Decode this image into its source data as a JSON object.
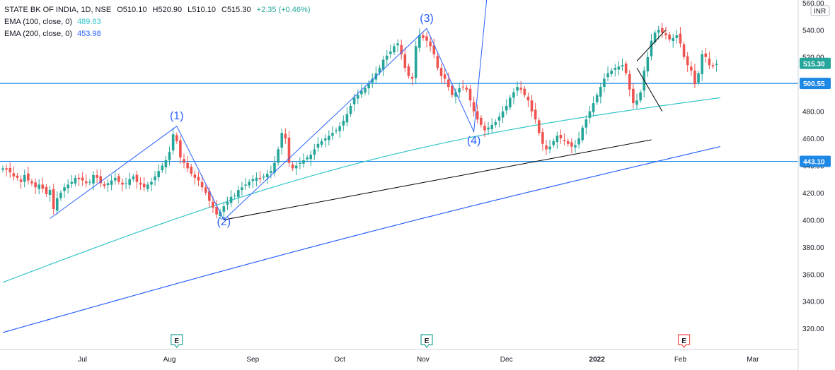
{
  "legend": {
    "symbol": "STATE BK OF INDIA, 1D, NSE",
    "open": "O510.10",
    "high": "H520.90",
    "low": "L510.10",
    "close": "C515.30",
    "change": "+2.35 (+0.46%)",
    "ema100_label": "EMA (100, close, 0)",
    "ema100_value": "489.83",
    "ema200_label": "EMA (200, close, 0)",
    "ema200_value": "453.98"
  },
  "currency": "INR",
  "colors": {
    "up": "#26a69a",
    "down": "#ef5350",
    "ema100": "#33c5c9",
    "ema200": "#2962ff",
    "hline": "#1e88e5",
    "wave": "#2962ff",
    "trend": "#000000"
  },
  "chart_data": {
    "type": "candlestick",
    "ylim": [
      305,
      562
    ],
    "y_ticks": [
      320,
      340,
      360,
      380,
      400,
      420,
      440,
      460,
      480,
      500,
      520,
      540,
      560
    ],
    "x_labels": [
      {
        "label": "Jul",
        "index": 22
      },
      {
        "label": "Aug",
        "index": 46
      },
      {
        "label": "Sep",
        "index": 69
      },
      {
        "label": "Oct",
        "index": 93
      },
      {
        "label": "Nov",
        "index": 116
      },
      {
        "label": "Dec",
        "index": 139
      },
      {
        "label": "2022",
        "index": 164
      },
      {
        "label": "Feb",
        "index": 187
      },
      {
        "label": "Mar",
        "index": 207
      }
    ],
    "candles_close": [
      438,
      437,
      435,
      432,
      431,
      428,
      433,
      429,
      427,
      424,
      426,
      423,
      419,
      422,
      408,
      416,
      420,
      424,
      426,
      428,
      431,
      430,
      429,
      427,
      428,
      433,
      431,
      427,
      425,
      427,
      429,
      431,
      428,
      426,
      427,
      430,
      432,
      428,
      426,
      424,
      426,
      428,
      432,
      436,
      440,
      444,
      450,
      463,
      458,
      446,
      442,
      438,
      434,
      431,
      429,
      424,
      420,
      414,
      409,
      404,
      406,
      410,
      413,
      417,
      418,
      422,
      424,
      426,
      428,
      430,
      431,
      430,
      432,
      434,
      436,
      442,
      452,
      464,
      460,
      442,
      438,
      440,
      442,
      444,
      446,
      448,
      452,
      456,
      458,
      460,
      462,
      464,
      466,
      469,
      473,
      478,
      484,
      490,
      492,
      495,
      497,
      500,
      504,
      508,
      512,
      518,
      521,
      524,
      528,
      530,
      522,
      512,
      506,
      504,
      528,
      536,
      534,
      532,
      528,
      522,
      512,
      506,
      504,
      498,
      492,
      494,
      497,
      498,
      496,
      488,
      480,
      474,
      470,
      466,
      468,
      470,
      472,
      476,
      480,
      484,
      490,
      494,
      498,
      496,
      492,
      488,
      480,
      474,
      464,
      456,
      452,
      454,
      458,
      462,
      460,
      458,
      456,
      454,
      455,
      460,
      468,
      474,
      480,
      486,
      492,
      498,
      504,
      508,
      510,
      512,
      513,
      514,
      508,
      496,
      486,
      488,
      494,
      510,
      520,
      532,
      538,
      540,
      538,
      536,
      533,
      534,
      536,
      530,
      520,
      514,
      510,
      500,
      508,
      522,
      520,
      514,
      513,
      515
    ],
    "annotations": [
      {
        "label": "(1)",
        "index": 48,
        "price": 474
      },
      {
        "label": "(2)",
        "index": 61,
        "price": 396
      },
      {
        "label": "(3)",
        "index": 117,
        "price": 546
      },
      {
        "label": "(4)",
        "index": 130,
        "price": 456
      }
    ],
    "wave_points": [
      [
        13,
        401
      ],
      [
        48,
        469
      ],
      [
        61,
        400
      ],
      [
        117,
        541
      ],
      [
        130,
        465
      ],
      [
        134,
        575
      ]
    ],
    "trend_line": [
      [
        61,
        400
      ],
      [
        179,
        459
      ]
    ],
    "triangle": [
      [
        175,
        517
      ],
      [
        183,
        540
      ]
    ],
    "triangle2": [
      [
        175,
        512
      ],
      [
        182,
        480
      ]
    ],
    "hlines": [
      500.55,
      443.1
    ],
    "price_labels": [
      "515.30",
      "500.55",
      "443.10"
    ],
    "earnings_markers": [
      {
        "label": "E",
        "index": 48,
        "color": "#26a69a"
      },
      {
        "label": "E",
        "index": 117,
        "color": "#26a69a"
      },
      {
        "label": "E",
        "index": 188,
        "color": "#ef5350"
      }
    ],
    "ema100": {
      "start": 354,
      "end": 490
    },
    "ema200": {
      "start": 317,
      "end": 454
    }
  }
}
